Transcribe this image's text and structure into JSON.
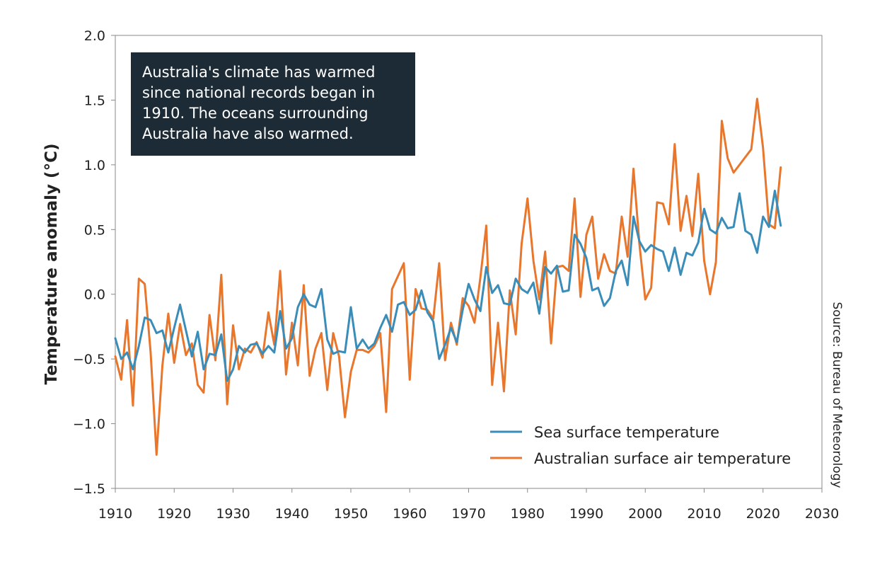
{
  "chart_data": {
    "type": "line",
    "title": "",
    "xlabel": "",
    "ylabel": "Temperature anomaly (°C)",
    "xlim": [
      1910,
      2030
    ],
    "ylim": [
      -1.5,
      2.0
    ],
    "x_ticks": [
      1910,
      1920,
      1930,
      1940,
      1950,
      1960,
      1970,
      1980,
      1990,
      2000,
      2010,
      2020,
      2030
    ],
    "y_ticks": [
      -1.5,
      -1.0,
      -0.5,
      0.0,
      0.5,
      1.0,
      1.5,
      2.0
    ],
    "y_tick_labels": [
      "−1.5",
      "−1.0",
      "−0.5",
      "0.0",
      "0.5",
      "1.0",
      "1.5",
      "2.0"
    ],
    "grid": false,
    "legend_position": "bottom-right",
    "annotation": {
      "lines": [
        "Australia's climate has warmed",
        "since national records began in",
        "1910. The oceans surrounding",
        "Australia have also warmed."
      ]
    },
    "source": "Source: Bureau of Meteorology",
    "x_start": 1910,
    "series": [
      {
        "name": "Sea surface temperature",
        "color": "#3a8db8",
        "start_year": 1910,
        "values": [
          -0.34,
          -0.5,
          -0.45,
          -0.58,
          -0.4,
          -0.18,
          -0.2,
          -0.3,
          -0.28,
          -0.45,
          -0.26,
          -0.08,
          -0.28,
          -0.48,
          -0.29,
          -0.58,
          -0.46,
          -0.47,
          -0.31,
          -0.67,
          -0.58,
          -0.4,
          -0.45,
          -0.39,
          -0.38,
          -0.46,
          -0.4,
          -0.45,
          -0.13,
          -0.42,
          -0.34,
          -0.1,
          0.0,
          -0.08,
          -0.1,
          0.04,
          -0.35,
          -0.46,
          -0.44,
          -0.45,
          -0.1,
          -0.42,
          -0.35,
          -0.42,
          -0.38,
          -0.26,
          -0.16,
          -0.29,
          -0.08,
          -0.06,
          -0.16,
          -0.12,
          0.03,
          -0.14,
          -0.21,
          -0.5,
          -0.39,
          -0.26,
          -0.37,
          -0.12,
          0.08,
          -0.04,
          -0.13,
          0.21,
          0.01,
          0.07,
          -0.07,
          -0.08,
          0.12,
          0.04,
          0.01,
          0.09,
          -0.15,
          0.21,
          0.16,
          0.22,
          0.02,
          0.03,
          0.46,
          0.39,
          0.28,
          0.03,
          0.05,
          -0.09,
          -0.03,
          0.18,
          0.26,
          0.07,
          0.6,
          0.41,
          0.33,
          0.38,
          0.35,
          0.33,
          0.18,
          0.36,
          0.15,
          0.32,
          0.3,
          0.4,
          0.66,
          0.5,
          0.47,
          0.59,
          0.51,
          0.52,
          0.78,
          0.49,
          0.46,
          0.32,
          0.6,
          0.52,
          0.8,
          0.53
        ]
      },
      {
        "name": "Australian surface air temperature",
        "color": "#e8762c",
        "start_year": 1910,
        "values": [
          -0.48,
          -0.66,
          -0.2,
          -0.86,
          0.12,
          0.08,
          -0.45,
          -1.24,
          -0.55,
          -0.15,
          -0.53,
          -0.23,
          -0.47,
          -0.38,
          -0.7,
          -0.76,
          -0.16,
          -0.51,
          0.15,
          -0.85,
          -0.24,
          -0.58,
          -0.42,
          -0.45,
          -0.37,
          -0.49,
          -0.14,
          -0.39,
          0.18,
          -0.62,
          -0.22,
          -0.55,
          0.07,
          -0.63,
          -0.42,
          -0.3,
          -0.74,
          -0.3,
          -0.48,
          -0.95,
          -0.6,
          -0.43,
          -0.43,
          -0.45,
          -0.4,
          -0.3,
          -0.91,
          0.04,
          0.14,
          0.24,
          -0.66,
          0.04,
          -0.11,
          -0.12,
          -0.19,
          0.24,
          -0.51,
          -0.22,
          -0.39,
          -0.03,
          -0.09,
          -0.22,
          0.13,
          0.53,
          -0.7,
          -0.22,
          -0.75,
          0.03,
          -0.31,
          0.39,
          0.74,
          0.26,
          -0.04,
          0.33,
          -0.38,
          0.21,
          0.22,
          0.18,
          0.74,
          -0.02,
          0.46,
          0.6,
          0.12,
          0.31,
          0.18,
          0.16,
          0.6,
          0.29,
          0.97,
          0.39,
          -0.04,
          0.05,
          0.71,
          0.7,
          0.54,
          1.16,
          0.49,
          0.76,
          0.45,
          0.93,
          0.26,
          0.0,
          0.25,
          1.34,
          1.05,
          0.94,
          1.0,
          1.06,
          1.12,
          1.51,
          1.13,
          0.54,
          0.51,
          0.98
        ]
      }
    ]
  }
}
